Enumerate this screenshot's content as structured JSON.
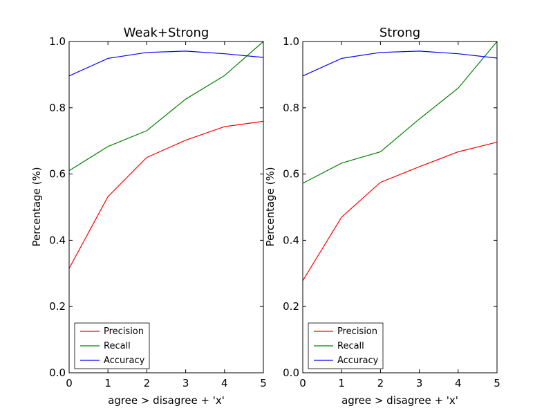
{
  "chart_data": [
    {
      "type": "line",
      "title": "Weak+Strong",
      "xlabel": "agree > disagree + 'x'",
      "ylabel": "Percentage (%)",
      "x": [
        0,
        1,
        2,
        3,
        4,
        5
      ],
      "xlim": [
        0,
        5
      ],
      "ylim": [
        0.0,
        1.0
      ],
      "xticks": [
        "0",
        "1",
        "2",
        "3",
        "4",
        "5"
      ],
      "yticks": [
        "0.0",
        "0.2",
        "0.4",
        "0.6",
        "0.8",
        "1.0"
      ],
      "legend": "lower-left",
      "series": [
        {
          "name": "Precision",
          "color": "#ff0000",
          "values": [
            0.315,
            0.532,
            0.65,
            0.702,
            0.743,
            0.759
          ]
        },
        {
          "name": "Recall",
          "color": "#008000",
          "values": [
            0.61,
            0.683,
            0.731,
            0.826,
            0.897,
            1.0
          ]
        },
        {
          "name": "Accuracy",
          "color": "#0000ff",
          "values": [
            0.896,
            0.949,
            0.967,
            0.971,
            0.963,
            0.952
          ]
        }
      ]
    },
    {
      "type": "line",
      "title": "Strong",
      "xlabel": "agree > disagree + 'x'",
      "ylabel": "Percentage (%)",
      "x": [
        0,
        1,
        2,
        3,
        4,
        5
      ],
      "xlim": [
        0,
        5
      ],
      "ylim": [
        0.0,
        1.0
      ],
      "xticks": [
        "0",
        "1",
        "2",
        "3",
        "4",
        "5"
      ],
      "yticks": [
        "0.0",
        "0.2",
        "0.4",
        "0.6",
        "0.8",
        "1.0"
      ],
      "legend": "lower-left",
      "series": [
        {
          "name": "Precision",
          "color": "#ff0000",
          "values": [
            0.278,
            0.47,
            0.575,
            0.622,
            0.667,
            0.696
          ]
        },
        {
          "name": "Recall",
          "color": "#008000",
          "values": [
            0.572,
            0.633,
            0.667,
            0.766,
            0.859,
            1.0
          ]
        },
        {
          "name": "Accuracy",
          "color": "#0000ff",
          "values": [
            0.896,
            0.949,
            0.967,
            0.971,
            0.963,
            0.95
          ]
        }
      ]
    }
  ]
}
